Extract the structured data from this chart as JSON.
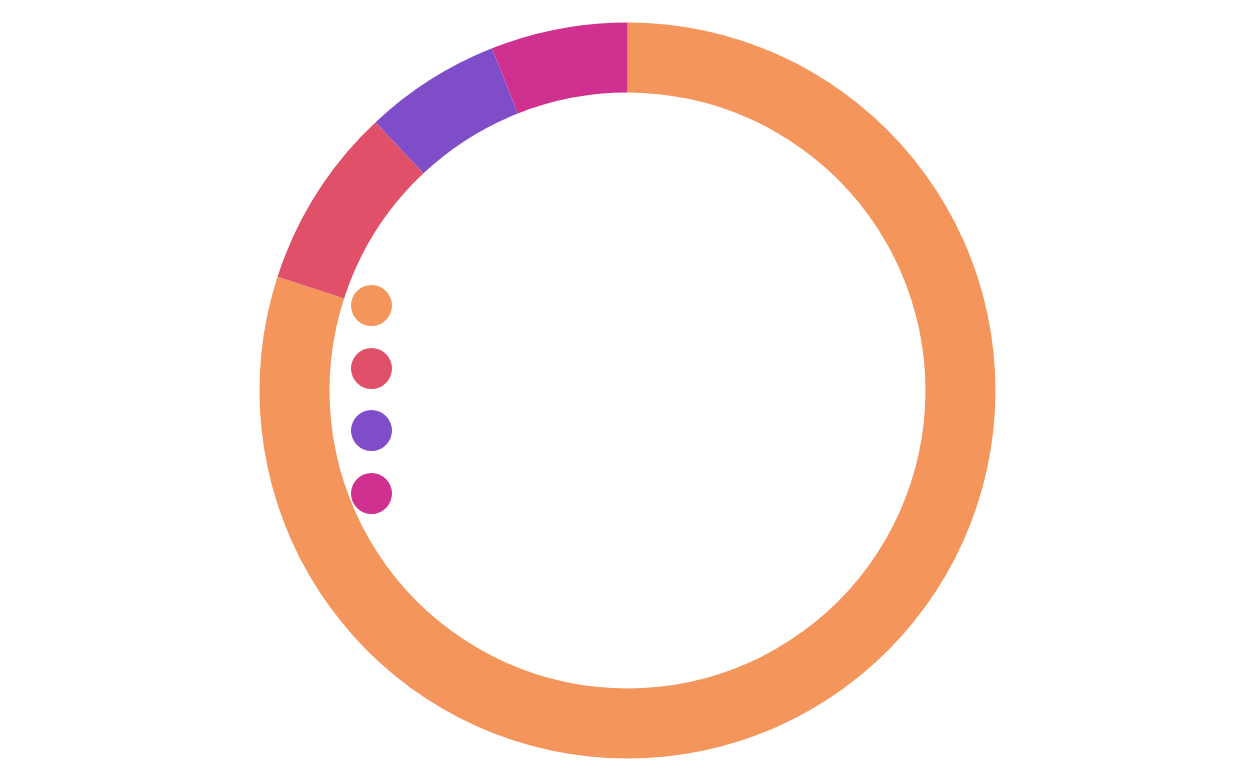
{
  "chart_data": {
    "type": "donut",
    "categories": [
      null,
      null,
      null,
      null
    ],
    "values": [
      80,
      8,
      6,
      6
    ],
    "colors": [
      "#f4955c",
      "#e05068",
      "#7f4dc8",
      "#d0308f"
    ]
  }
}
